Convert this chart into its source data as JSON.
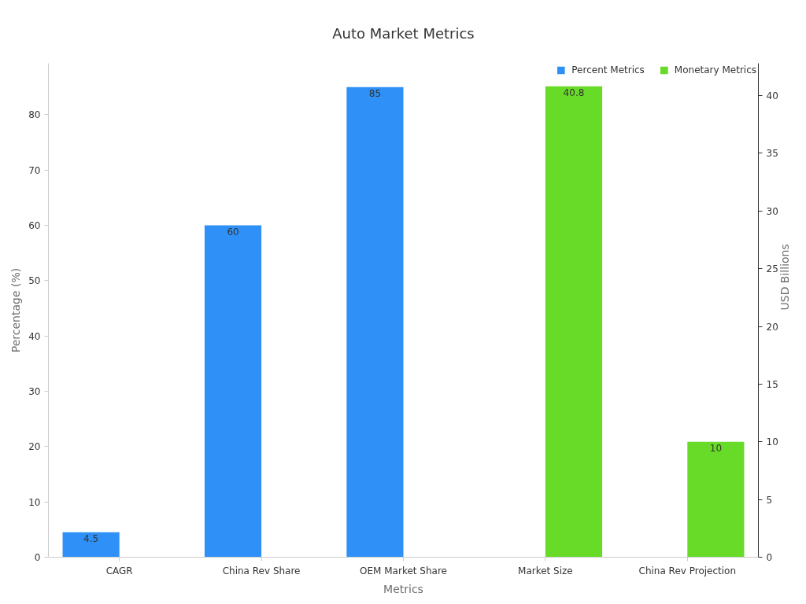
{
  "chart_data": {
    "type": "bar",
    "title": "Auto Market Metrics",
    "xlabel": "Metrics",
    "ylabel": "Percentage (%)",
    "y2label": "USD Billions",
    "categories": [
      "CAGR",
      "China Rev Share",
      "OEM Market Share",
      "Market Size",
      "China Rev Projection"
    ],
    "series": [
      {
        "name": "Percent Metrics",
        "color": "#2f91f7",
        "values": [
          4.5,
          60,
          85,
          null,
          null
        ]
      },
      {
        "name": "Monetary Metrics",
        "color": "#67db27",
        "values": [
          null,
          null,
          null,
          40.8,
          10
        ],
        "axis": "y2"
      }
    ],
    "ylim": [
      0,
      89.3
    ],
    "yticks": [
      0,
      10,
      20,
      30,
      40,
      50,
      60,
      70,
      80
    ],
    "y2lim": [
      0,
      42.8
    ],
    "y2ticks": [
      0,
      5,
      10,
      15,
      20,
      25,
      30,
      35,
      40
    ],
    "data_labels": true,
    "grid": false,
    "legend": "top right"
  }
}
